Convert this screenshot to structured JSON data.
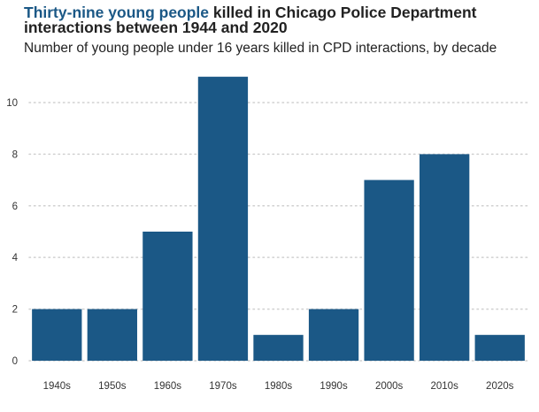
{
  "title": {
    "highlight": "Thirty-nine young people",
    "rest": " killed in Chicago Police Department interactions between 1944 and 2020"
  },
  "subtitle": "Number of young people under 16 years killed in CPD interactions, by decade",
  "colors": {
    "bar": "#1b5886",
    "highlight": "#1b5886",
    "grid": "#d0d0d0"
  },
  "chart_data": {
    "type": "bar",
    "categories": [
      "1940s",
      "1950s",
      "1960s",
      "1970s",
      "1980s",
      "1990s",
      "2000s",
      "2010s",
      "2020s"
    ],
    "values": [
      2,
      2,
      5,
      11,
      1,
      2,
      7,
      8,
      1
    ],
    "ylim": [
      0,
      11
    ],
    "yticks": [
      0,
      2,
      4,
      6,
      8,
      10
    ],
    "grid": "horizontal dotted",
    "legend": "none"
  }
}
